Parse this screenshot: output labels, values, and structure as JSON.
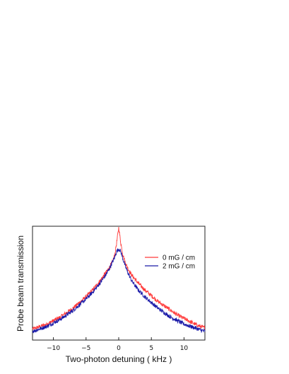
{
  "chart_data": {
    "type": "line",
    "xlabel": "Two-photon detuning ( kHz )",
    "ylabel": "Probe beam transmission",
    "xlim": [
      -13.2,
      13.2
    ],
    "ylim": [
      0,
      1
    ],
    "xticks": [
      -10,
      -5,
      0,
      5,
      10
    ],
    "grid": false,
    "legend_position": "upper-right",
    "series": [
      {
        "name": "0 mG / cm",
        "color": "#ff3b3b",
        "x": [
          -13,
          -12,
          -11,
          -10,
          -9,
          -8,
          -7,
          -6,
          -5,
          -4,
          -3,
          -2,
          -1.5,
          -1,
          -0.6,
          -0.3,
          0,
          0.3,
          0.6,
          1,
          1.5,
          2,
          3,
          4,
          5,
          6,
          7,
          8,
          9,
          10,
          11,
          12,
          13
        ],
        "y": [
          0.1,
          0.12,
          0.14,
          0.17,
          0.2,
          0.24,
          0.28,
          0.33,
          0.38,
          0.44,
          0.51,
          0.59,
          0.63,
          0.68,
          0.75,
          0.86,
          0.99,
          0.86,
          0.76,
          0.68,
          0.62,
          0.57,
          0.5,
          0.44,
          0.39,
          0.34,
          0.3,
          0.26,
          0.22,
          0.19,
          0.16,
          0.13,
          0.11
        ]
      },
      {
        "name": "2 mG / cm",
        "color": "#1a1aa8",
        "x": [
          -13,
          -12,
          -11,
          -10,
          -9,
          -8,
          -7,
          -6,
          -5,
          -4,
          -3,
          -2,
          -1.5,
          -1,
          -0.6,
          -0.3,
          0,
          0.3,
          0.6,
          1,
          1.5,
          2,
          3,
          4,
          5,
          6,
          7,
          8,
          9,
          10,
          11,
          12,
          13
        ],
        "y": [
          0.08,
          0.1,
          0.12,
          0.15,
          0.18,
          0.22,
          0.26,
          0.31,
          0.36,
          0.42,
          0.49,
          0.57,
          0.62,
          0.68,
          0.73,
          0.78,
          0.8,
          0.78,
          0.72,
          0.65,
          0.58,
          0.52,
          0.44,
          0.38,
          0.33,
          0.28,
          0.24,
          0.2,
          0.17,
          0.14,
          0.12,
          0.1,
          0.08
        ]
      }
    ]
  }
}
